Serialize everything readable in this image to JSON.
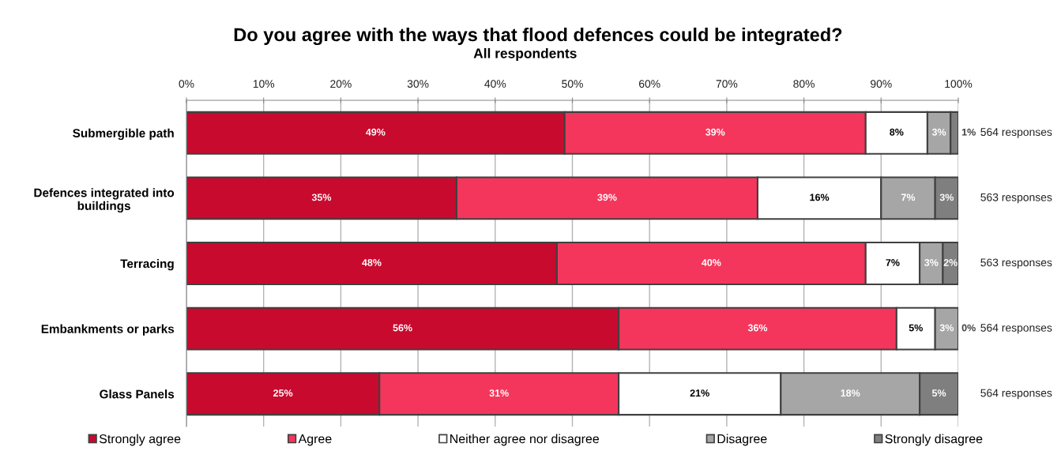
{
  "chart_data": {
    "type": "bar",
    "orientation": "horizontal",
    "stacked": true,
    "title": "Do you agree with the ways that flood defences could be integrated?",
    "subtitle": "All respondents",
    "categories": [
      "Submergible path",
      "Defences integrated into buildings",
      "Terracing",
      "Embankments or parks",
      "Glass Panels"
    ],
    "series": [
      {
        "name": "Strongly agree",
        "color": "#c80a2e",
        "values": [
          49,
          35,
          48,
          56,
          25
        ],
        "value_labels": [
          "49%",
          "35%",
          "48%",
          "56%",
          "25%"
        ]
      },
      {
        "name": "Agree",
        "color": "#f4365c",
        "values": [
          39,
          39,
          40,
          36,
          31
        ],
        "value_labels": [
          "39%",
          "39%",
          "40%",
          "36%",
          "31%"
        ]
      },
      {
        "name": "Neither agree nor disagree",
        "color": "#ffffff",
        "values": [
          8,
          16,
          7,
          5,
          21
        ],
        "value_labels": [
          "8%",
          "16%",
          "7%",
          "5%",
          "21%"
        ]
      },
      {
        "name": "Disagree",
        "color": "#a6a6a6",
        "values": [
          3,
          7,
          3,
          3,
          18
        ],
        "value_labels": [
          "3%",
          "7%",
          "3%",
          "3%",
          "18%"
        ]
      },
      {
        "name": "Strongly disagree",
        "color": "#7f7f7f",
        "values": [
          1,
          3,
          2,
          0,
          5
        ],
        "value_labels": [
          "1%",
          "3%",
          "2%",
          "0%",
          "5%"
        ]
      }
    ],
    "xlim": [
      0,
      100
    ],
    "xticks": [
      {
        "value": 0,
        "label": "0%"
      },
      {
        "value": 10,
        "label": "10%"
      },
      {
        "value": 20,
        "label": "20%"
      },
      {
        "value": 30,
        "label": "30%"
      },
      {
        "value": 40,
        "label": "40%"
      },
      {
        "value": 50,
        "label": "50%"
      },
      {
        "value": 60,
        "label": "60%"
      },
      {
        "value": 70,
        "label": "70%"
      },
      {
        "value": 80,
        "label": "80%"
      },
      {
        "value": 90,
        "label": "90%"
      },
      {
        "value": 100,
        "label": "100%"
      }
    ],
    "grid": "x",
    "legend": "bottom",
    "annotations": [
      "564 responses",
      "563 responses",
      "563 responses",
      "564 responses",
      "564 responses"
    ]
  }
}
